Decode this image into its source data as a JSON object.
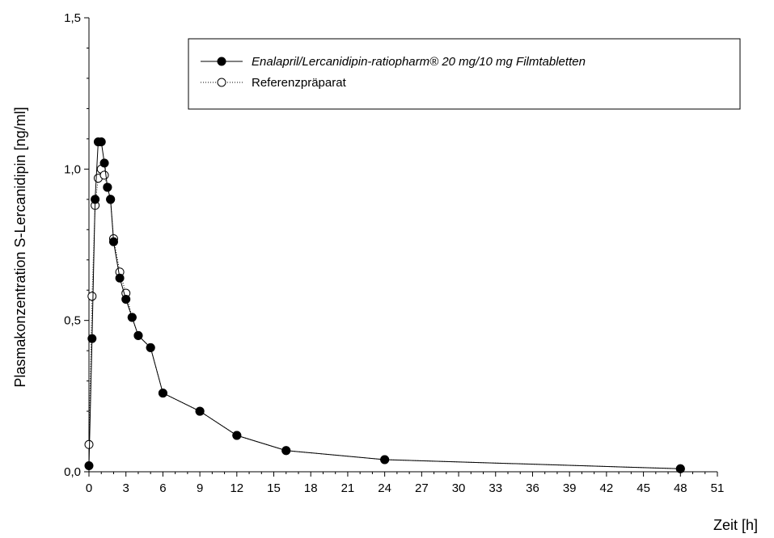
{
  "chart_data": {
    "type": "line",
    "title": "",
    "xlabel": "Zeit [h]",
    "ylabel": "Plasmakonzentration S-Lercanidipin [ng/ml]",
    "xlim": [
      0,
      51
    ],
    "ylim": [
      0,
      1.5
    ],
    "xticks": [
      0,
      3,
      6,
      9,
      12,
      15,
      18,
      21,
      24,
      27,
      30,
      33,
      36,
      39,
      42,
      45,
      48,
      51
    ],
    "xtick_labels": [
      "0",
      "3",
      "6",
      "9",
      "12",
      "15",
      "18",
      "21",
      "24",
      "27",
      "30",
      "33",
      "36",
      "39",
      "42",
      "45",
      "48",
      "51"
    ],
    "yticks": [
      0,
      0.5,
      1.0,
      1.5
    ],
    "ytick_labels": [
      "0,0",
      "0,5",
      "1,0",
      "1,5"
    ],
    "grid": false,
    "legend_position": "top-right",
    "series": [
      {
        "name": "Enalapril/Lercanidipin-ratiopharm® 20 mg/10 mg Filmtabletten",
        "marker": "filled-circle",
        "line": "solid",
        "color": "#000000",
        "x": [
          0.0,
          0.25,
          0.5,
          0.75,
          1.0,
          1.25,
          1.5,
          1.75,
          2.0,
          2.5,
          3.0,
          3.5,
          4.0,
          5.0,
          6.0,
          9.0,
          12.0,
          16.0,
          24.0,
          48.0
        ],
        "y": [
          0.02,
          0.44,
          0.9,
          1.09,
          1.09,
          1.02,
          0.94,
          0.9,
          0.76,
          0.64,
          0.57,
          0.51,
          0.45,
          0.41,
          0.26,
          0.2,
          0.12,
          0.07,
          0.04,
          0.01
        ]
      },
      {
        "name": "Referenzpräparat",
        "marker": "open-circle",
        "line": "dotted",
        "color": "#000000",
        "x": [
          0.0,
          0.25,
          0.5,
          0.75,
          1.0,
          1.25,
          1.5,
          1.75,
          2.0,
          2.5,
          3.0,
          3.5,
          4.0,
          5.0,
          6.0,
          9.0,
          12.0,
          16.0,
          24.0,
          48.0
        ],
        "y": [
          0.09,
          0.58,
          0.88,
          0.97,
          1.0,
          0.98,
          0.94,
          0.9,
          0.77,
          0.66,
          0.59,
          0.51,
          0.45,
          0.41,
          0.26,
          0.2,
          0.12,
          0.07,
          0.04,
          0.01
        ]
      }
    ]
  }
}
